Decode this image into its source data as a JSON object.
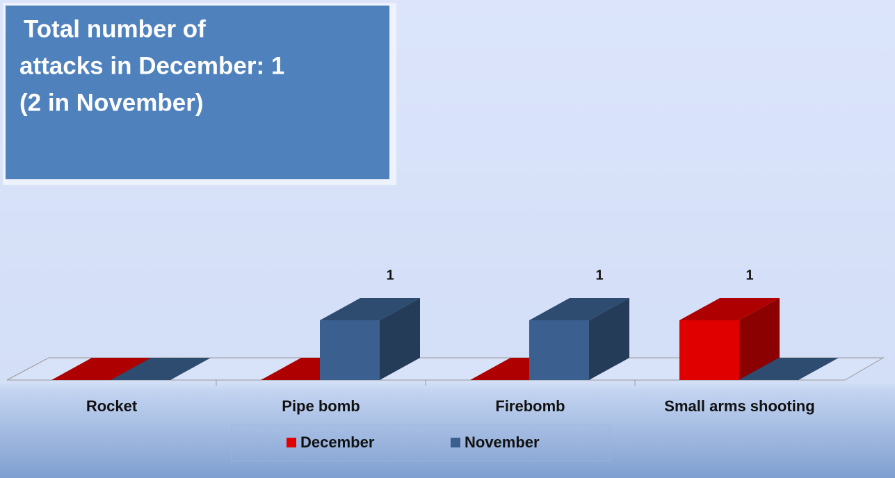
{
  "chart_data": {
    "type": "bar3d",
    "title": [
      "Total number of",
      "attacks in December: 1",
      "(2 in November)"
    ],
    "categories": [
      "Rocket",
      "Pipe bomb",
      "Firebomb",
      "Small arms shooting"
    ],
    "series": [
      {
        "name": "December",
        "color": "#e00000",
        "values": [
          0,
          0,
          0,
          1
        ]
      },
      {
        "name": "November",
        "color": "#3b6090",
        "values": [
          0,
          1,
          1,
          0
        ]
      }
    ],
    "legend": "bottom"
  }
}
